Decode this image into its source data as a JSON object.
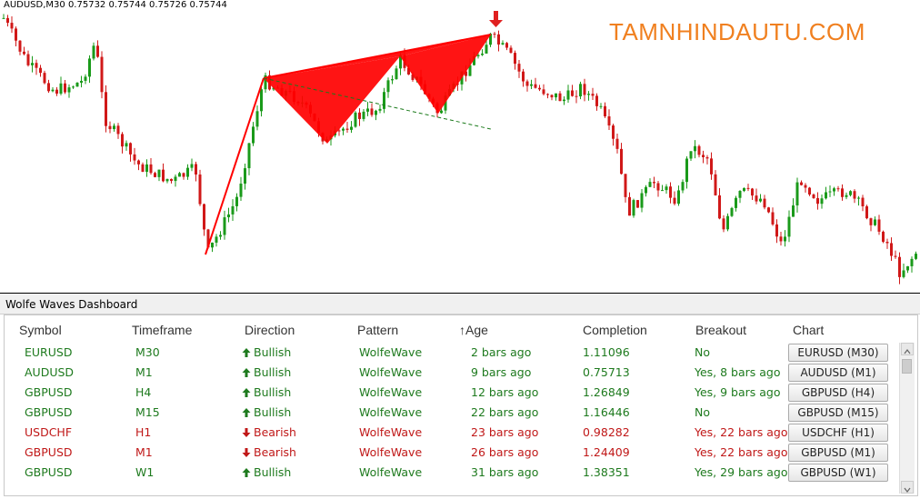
{
  "chart": {
    "header": "AUDUSD,M30  0.75732 0.75744 0.75726 0.75744",
    "watermark": "TAMNHINDAUTU.COM",
    "colors": {
      "bull": "#1a9a1a",
      "bear": "#d01818",
      "pattern": "#ff0000",
      "signal_arrow": "#e02020"
    }
  },
  "dashboard": {
    "title": "Wolfe Waves Dashboard",
    "columns": [
      "Symbol",
      "Timeframe",
      "Direction",
      "Pattern",
      "Age",
      "Completion",
      "Breakout",
      "Chart"
    ],
    "sort_indicator_icon": "sort-up-arrow-icon",
    "rows": [
      {
        "symbol": "EURUSD",
        "timeframe": "M30",
        "direction": "Bullish",
        "pattern": "WolfeWave",
        "age": "2 bars ago",
        "completion": "1.11096",
        "breakout": "No",
        "chart": "EURUSD (M30)",
        "dir_class": "green",
        "breakout_class": "green"
      },
      {
        "symbol": "AUDUSD",
        "timeframe": "M1",
        "direction": "Bullish",
        "pattern": "WolfeWave",
        "age": "9 bars ago",
        "completion": "0.75713",
        "breakout": "Yes, 8 bars ago",
        "chart": "AUDUSD (M1)",
        "dir_class": "green",
        "breakout_class": "green"
      },
      {
        "symbol": "GBPUSD",
        "timeframe": "H4",
        "direction": "Bullish",
        "pattern": "WolfeWave",
        "age": "12 bars ago",
        "completion": "1.26849",
        "breakout": "Yes, 9 bars ago",
        "chart": "GBPUSD (H4)",
        "dir_class": "green",
        "breakout_class": "green"
      },
      {
        "symbol": "GBPUSD",
        "timeframe": "M15",
        "direction": "Bullish",
        "pattern": "WolfeWave",
        "age": "22 bars ago",
        "completion": "1.16446",
        "breakout": "No",
        "chart": "GBPUSD (M15)",
        "dir_class": "green",
        "breakout_class": "green"
      },
      {
        "symbol": "USDCHF",
        "timeframe": "H1",
        "direction": "Bearish",
        "pattern": "WolfeWave",
        "age": "23 bars ago",
        "completion": "0.98282",
        "breakout": "Yes, 22 bars ago",
        "chart": "USDCHF (H1)",
        "dir_class": "red",
        "breakout_class": "red"
      },
      {
        "symbol": "GBPUSD",
        "timeframe": "M1",
        "direction": "Bearish",
        "pattern": "WolfeWave",
        "age": "26 bars ago",
        "completion": "1.24409",
        "breakout": "Yes, 22 bars ago",
        "chart": "GBPUSD (M1)",
        "dir_class": "red",
        "breakout_class": "red"
      },
      {
        "symbol": "GBPUSD",
        "timeframe": "W1",
        "direction": "Bullish",
        "pattern": "WolfeWave",
        "age": "31 bars ago",
        "completion": "1.38351",
        "breakout": "Yes, 29 bars ago",
        "chart": "GBPUSD (W1)",
        "dir_class": "green",
        "breakout_class": "green"
      }
    ]
  }
}
